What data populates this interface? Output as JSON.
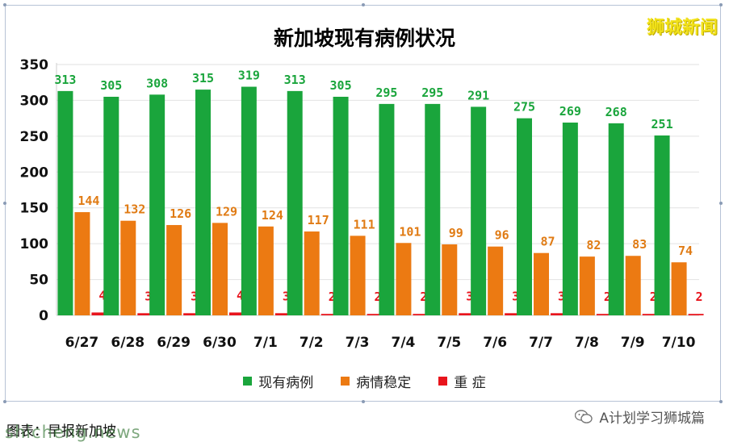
{
  "chart_data": {
    "type": "bar",
    "title": "新加坡现有病例状况",
    "categories": [
      "6/27",
      "6/28",
      "6/29",
      "6/30",
      "7/1",
      "7/2",
      "7/3",
      "7/4",
      "7/5",
      "7/6",
      "7/7",
      "7/8",
      "7/9",
      "7/10"
    ],
    "series": [
      {
        "name": "现有病例",
        "color": "#1aa53c",
        "label_color": "#1aa53c",
        "values": [
          313,
          305,
          308,
          315,
          319,
          313,
          305,
          295,
          295,
          291,
          275,
          269,
          268,
          251
        ]
      },
      {
        "name": "病情稳定",
        "color": "#ec7a12",
        "label_color": "#e07b14",
        "values": [
          144,
          132,
          126,
          129,
          124,
          117,
          111,
          101,
          99,
          96,
          87,
          82,
          83,
          74
        ]
      },
      {
        "name": "重 症",
        "color": "#e8141c",
        "label_color": "#e8141c",
        "values": [
          4,
          3,
          3,
          4,
          3,
          2,
          2,
          2,
          3,
          3,
          3,
          2,
          2,
          2
        ]
      }
    ],
    "ylim": [
      0,
      350
    ],
    "yticks": [
      0,
      50,
      100,
      150,
      200,
      250,
      300,
      350
    ],
    "grid": true,
    "legend_position": "bottom"
  },
  "brand": "狮城新闻",
  "caption": "图表：早报新加坡",
  "caption_overlay": "shicheng.news",
  "watermark": "A计划学习狮城篇",
  "watermark_icon": "wechat-icon"
}
